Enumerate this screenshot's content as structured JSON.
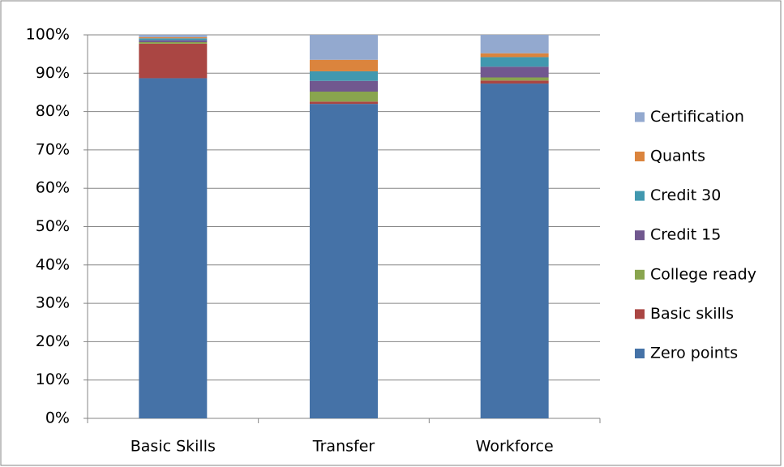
{
  "chart_data": {
    "type": "stacked_bar",
    "categories": [
      "Basic Skills",
      "Transfer",
      "Workforce"
    ],
    "series": [
      {
        "name": "Zero points",
        "color": "#4572a7",
        "values": [
          88.7,
          82.0,
          87.3
        ]
      },
      {
        "name": "Basic skills",
        "color": "#aa4643",
        "values": [
          9.0,
          0.6,
          0.8
        ]
      },
      {
        "name": "College ready",
        "color": "#89a54e",
        "values": [
          0.4,
          2.6,
          0.8
        ]
      },
      {
        "name": "Credit 15",
        "color": "#71588f",
        "values": [
          0.5,
          2.8,
          2.8
        ]
      },
      {
        "name": "Credit 30",
        "color": "#4198af",
        "values": [
          0.5,
          2.5,
          2.5
        ]
      },
      {
        "name": "Quants",
        "color": "#db843d",
        "values": [
          0.3,
          3.0,
          1.0
        ]
      },
      {
        "name": "Certification",
        "color": "#93a9cf",
        "values": [
          0.6,
          6.5,
          4.8
        ]
      }
    ],
    "ylim": [
      0,
      100
    ],
    "yticks": [
      {
        "value": 0,
        "label": "0%"
      },
      {
        "value": 10,
        "label": "10%"
      },
      {
        "value": 20,
        "label": "20%"
      },
      {
        "value": 30,
        "label": "30%"
      },
      {
        "value": 40,
        "label": "40%"
      },
      {
        "value": 50,
        "label": "50%"
      },
      {
        "value": 60,
        "label": "60%"
      },
      {
        "value": 70,
        "label": "70%"
      },
      {
        "value": 80,
        "label": "80%"
      },
      {
        "value": 90,
        "label": "90%"
      },
      {
        "value": 100,
        "label": "100%"
      }
    ],
    "grid": true,
    "legend": "right"
  }
}
